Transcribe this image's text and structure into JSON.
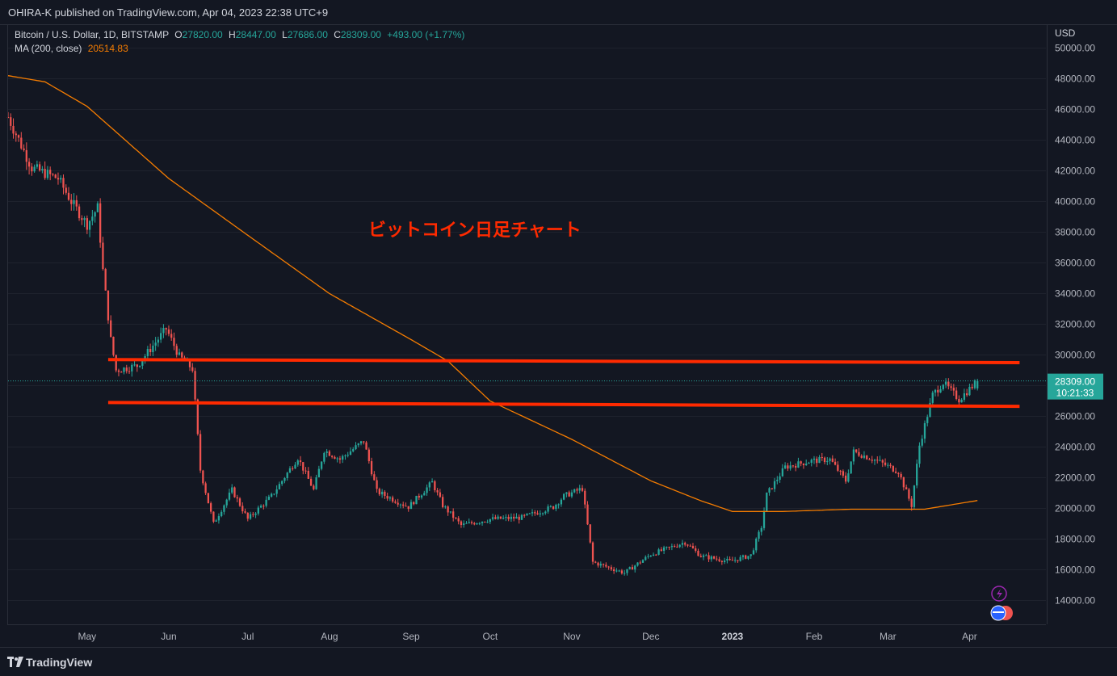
{
  "header": {
    "published": "OHIRA-K published on TradingView.com, Apr 04, 2023 22:38 UTC+9"
  },
  "legend": {
    "symbol": "Bitcoin / U.S. Dollar, 1D, BITSTAMP",
    "o_label": "O",
    "o": "27820.00",
    "h_label": "H",
    "h": "28447.00",
    "l_label": "L",
    "l": "27686.00",
    "c_label": "C",
    "c": "28309.00",
    "change": "+493.00 (+1.77%)",
    "ma_label": "MA (200, close)",
    "ma_value": "20514.83"
  },
  "price_axis": {
    "currency": "USD",
    "last_price": "28309.00",
    "countdown": "10:21:33"
  },
  "annotation": {
    "text": "ビットコイン日足チャート"
  },
  "footer": {
    "brand": "TradingView"
  },
  "colors": {
    "background": "#131722",
    "up": "#26a69a",
    "down": "#ef5350",
    "ma": "#f57c00",
    "levels": "#ff2a00",
    "annotation": "#ff2a00"
  },
  "chart_data": {
    "type": "candlestick",
    "ylim": [
      12500,
      51500
    ],
    "y_ticks": [
      14000,
      16000,
      18000,
      20000,
      22000,
      24000,
      26000,
      28000,
      30000,
      32000,
      34000,
      36000,
      38000,
      40000,
      42000,
      44000,
      46000,
      48000,
      50000
    ],
    "y_tick_labels": [
      "14000.00",
      "16000.00",
      "18000.00",
      "20000.00",
      "22000.00",
      "24000.00",
      "26000.00",
      "28000.00",
      "30000.00",
      "32000.00",
      "34000.00",
      "36000.00",
      "38000.00",
      "40000.00",
      "42000.00",
      "44000.00",
      "46000.00",
      "48000.00",
      "50000.00"
    ],
    "x_labels": [
      "May",
      "Jun",
      "Jul",
      "Aug",
      "Sep",
      "Oct",
      "Nov",
      "Dec",
      "2023",
      "Feb",
      "Mar",
      "Apr"
    ],
    "x_label_dates": [
      "2022-05-01",
      "2022-06-01",
      "2022-07-01",
      "2022-08-01",
      "2022-09-01",
      "2022-10-01",
      "2022-11-01",
      "2022-12-01",
      "2023-01-01",
      "2023-02-01",
      "2023-03-01",
      "2023-04-01"
    ],
    "x_range": [
      "2022-04-01",
      "2023-04-30"
    ],
    "series_closes": {
      "dates_start": "2022-04-01",
      "step_days": 1,
      "close_anchors": [
        [
          "2022-04-01",
          45500
        ],
        [
          "2022-04-10",
          42200
        ],
        [
          "2022-04-20",
          41500
        ],
        [
          "2022-04-25",
          40000
        ],
        [
          "2022-05-01",
          38500
        ],
        [
          "2022-05-05",
          39600
        ],
        [
          "2022-05-07",
          35500
        ],
        [
          "2022-05-10",
          31000
        ],
        [
          "2022-05-12",
          29000
        ],
        [
          "2022-05-20",
          29300
        ],
        [
          "2022-05-31",
          31700
        ],
        [
          "2022-06-05",
          29900
        ],
        [
          "2022-06-10",
          29100
        ],
        [
          "2022-06-13",
          22500
        ],
        [
          "2022-06-18",
          19000
        ],
        [
          "2022-06-25",
          21200
        ],
        [
          "2022-07-01",
          19300
        ],
        [
          "2022-07-10",
          20800
        ],
        [
          "2022-07-20",
          23300
        ],
        [
          "2022-07-26",
          21200
        ],
        [
          "2022-07-30",
          23800
        ],
        [
          "2022-08-05",
          23200
        ],
        [
          "2022-08-14",
          24400
        ],
        [
          "2022-08-19",
          21100
        ],
        [
          "2022-08-31",
          20100
        ],
        [
          "2022-09-09",
          21700
        ],
        [
          "2022-09-13",
          20200
        ],
        [
          "2022-09-20",
          18900
        ],
        [
          "2022-10-01",
          19300
        ],
        [
          "2022-10-13",
          19400
        ],
        [
          "2022-10-25",
          20100
        ],
        [
          "2022-10-29",
          20800
        ],
        [
          "2022-11-05",
          21300
        ],
        [
          "2022-11-09",
          16500
        ],
        [
          "2022-11-21",
          15800
        ],
        [
          "2022-12-01",
          17000
        ],
        [
          "2022-12-14",
          17800
        ],
        [
          "2022-12-20",
          16900
        ],
        [
          "2022-12-31",
          16550
        ],
        [
          "2023-01-08",
          16950
        ],
        [
          "2023-01-12",
          18800
        ],
        [
          "2023-01-14",
          20900
        ],
        [
          "2023-01-21",
          22700
        ],
        [
          "2023-01-31",
          23100
        ],
        [
          "2023-02-07",
          23200
        ],
        [
          "2023-02-13",
          21800
        ],
        [
          "2023-02-16",
          23700
        ],
        [
          "2023-02-25",
          23100
        ],
        [
          "2023-03-05",
          22400
        ],
        [
          "2023-03-10",
          20200
        ],
        [
          "2023-03-13",
          24100
        ],
        [
          "2023-03-18",
          27400
        ],
        [
          "2023-03-22",
          28200
        ],
        [
          "2023-03-28",
          27100
        ],
        [
          "2023-04-04",
          28309
        ]
      ]
    },
    "ma200_anchors": [
      [
        "2022-04-01",
        48200
      ],
      [
        "2022-04-15",
        47800
      ],
      [
        "2022-05-01",
        46200
      ],
      [
        "2022-06-01",
        41500
      ],
      [
        "2022-07-01",
        37800
      ],
      [
        "2022-08-01",
        34000
      ],
      [
        "2022-09-01",
        31000
      ],
      [
        "2022-09-15",
        29600
      ],
      [
        "2022-10-01",
        27000
      ],
      [
        "2022-11-01",
        24500
      ],
      [
        "2022-12-01",
        21800
      ],
      [
        "2022-12-20",
        20500
      ],
      [
        "2023-01-01",
        19800
      ],
      [
        "2023-01-20",
        19800
      ],
      [
        "2023-02-15",
        19950
      ],
      [
        "2023-03-15",
        19950
      ],
      [
        "2023-04-04",
        20514.83
      ]
    ],
    "horizontal_levels": [
      {
        "price_start": 29700,
        "price_end": 29500,
        "from": "2022-05-09",
        "to": "2023-04-20"
      },
      {
        "price_start": 26900,
        "price_end": 26650,
        "from": "2022-05-09",
        "to": "2023-04-20"
      }
    ]
  }
}
